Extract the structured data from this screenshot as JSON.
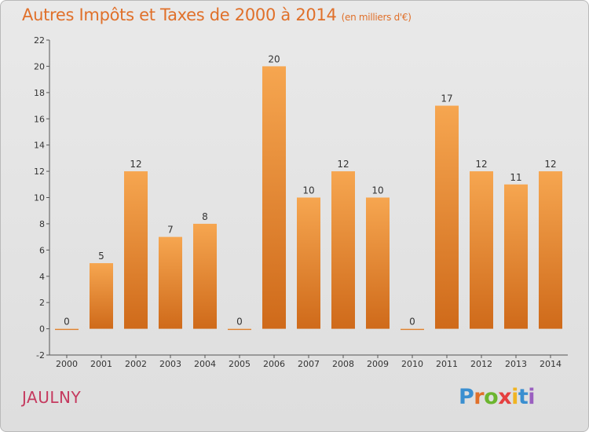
{
  "title": "Autres Impôts et Taxes de 2000 à 2014",
  "title_unit": "(en milliers d'€)",
  "commune": "JAULNY",
  "brand": {
    "letters": [
      "P",
      "r",
      "o",
      "x",
      "i",
      "t",
      "i"
    ],
    "colors": [
      "#3a8fd0",
      "#e0702a",
      "#6cb52f",
      "#e54040",
      "#f0b422",
      "#3a8fd0",
      "#9a5fc0"
    ]
  },
  "colors": {
    "bar_top": "#f6a650",
    "bar_bottom": "#cf6a1a",
    "title": "#e0702a",
    "commune": "#c53a5f"
  },
  "chart_data": {
    "type": "bar",
    "categories": [
      "2000",
      "2001",
      "2002",
      "2003",
      "2004",
      "2005",
      "2006",
      "2007",
      "2008",
      "2009",
      "2010",
      "2011",
      "2012",
      "2013",
      "2014"
    ],
    "values": [
      0,
      5,
      12,
      7,
      8,
      0,
      20,
      10,
      12,
      10,
      0,
      17,
      12,
      11,
      12
    ],
    "value_labels": [
      "0",
      "5",
      "12",
      "7",
      "8",
      "0",
      "20",
      "10",
      "12",
      "10",
      "0",
      "17",
      "12",
      "11",
      "12"
    ],
    "yticks": [
      -2,
      0,
      2,
      4,
      6,
      8,
      10,
      12,
      14,
      16,
      18,
      20,
      22
    ],
    "ylim": [
      -2,
      22
    ],
    "grid": false,
    "legend": false
  }
}
